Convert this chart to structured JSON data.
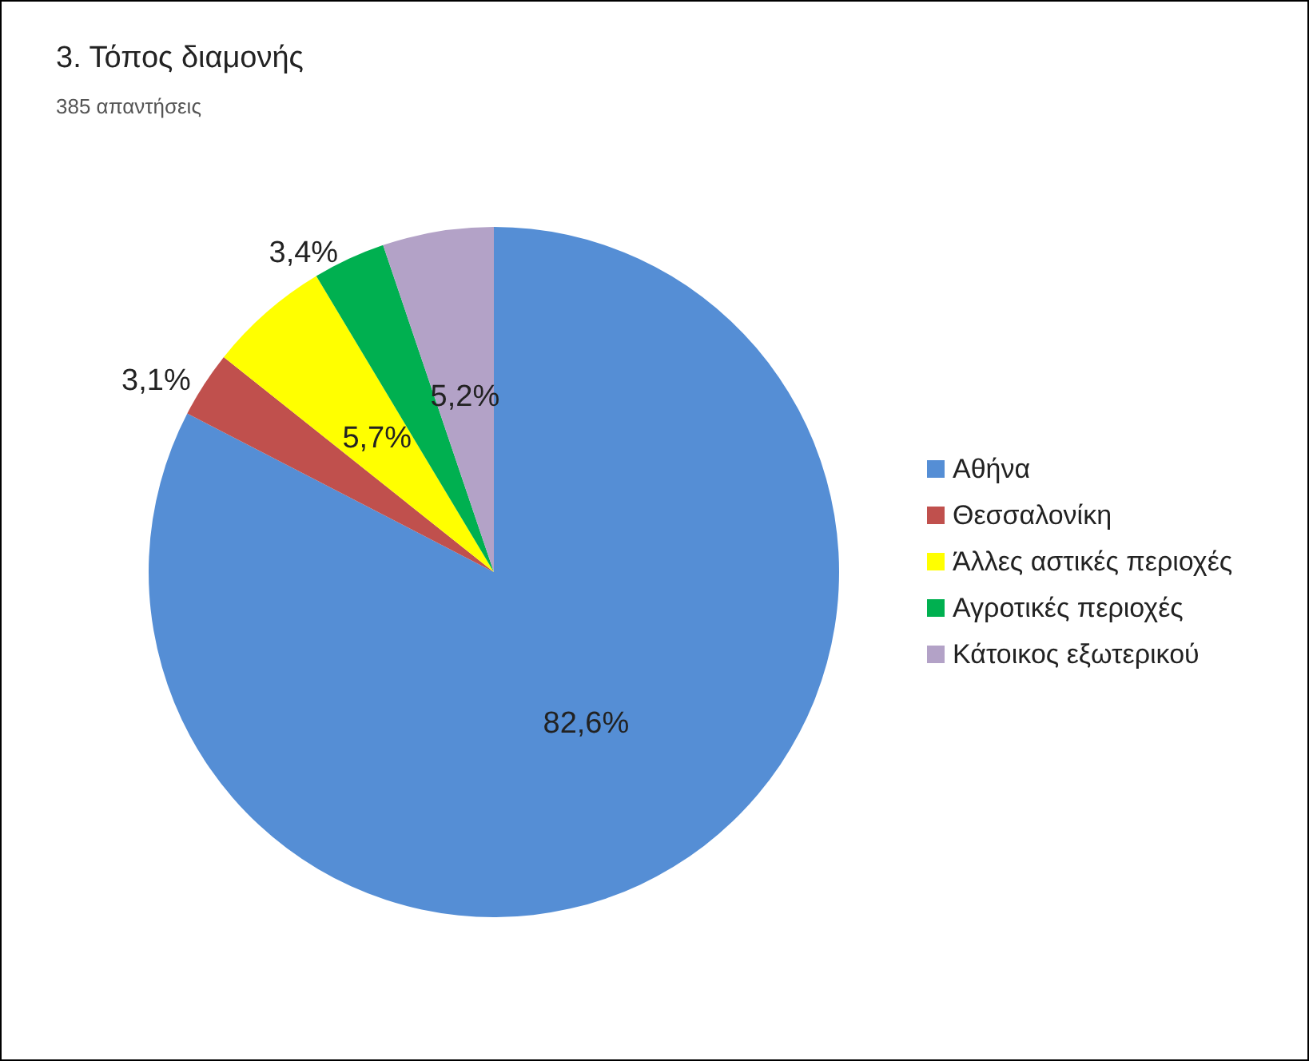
{
  "chart_data": {
    "type": "pie",
    "title": "3. Τόπος διαμονής",
    "subtitle": "385 απαντήσεις",
    "categories": [
      "Αθήνα",
      "Θεσσαλονίκη",
      "Άλλες αστικές περιοχές",
      "Αγροτικές περιοχές",
      "Κάτοικος εξωτερικού"
    ],
    "values": [
      82.6,
      3.1,
      5.7,
      3.4,
      5.2
    ],
    "colors": [
      "#558ed5",
      "#c0504d",
      "#ffff00",
      "#00b050",
      "#b3a2c7"
    ],
    "value_labels": [
      "82,6%",
      "3,1%",
      "5,7%",
      "3,4%",
      "5,2%"
    ],
    "legend": "right"
  }
}
